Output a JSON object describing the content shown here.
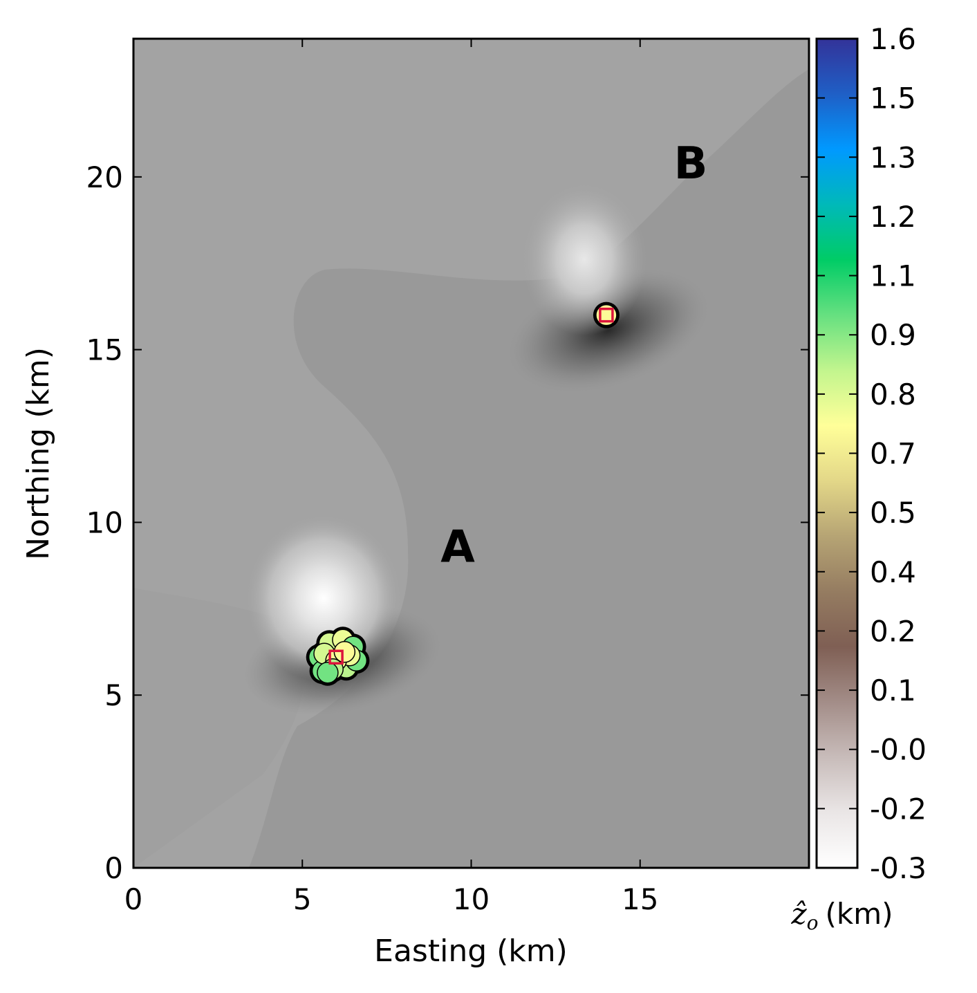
{
  "chart_data": {
    "type": "scatter",
    "xlabel": "Easting (km)",
    "ylabel": "Northing (km)",
    "xlim": [
      0,
      20
    ],
    "ylim": [
      0,
      24
    ],
    "xticks": [
      0,
      5,
      10,
      15
    ],
    "yticks": [
      0,
      5,
      10,
      15,
      20
    ],
    "background": "grayscale filled contour map of the gravity/magnetic anomaly",
    "annotations": [
      {
        "text": "A",
        "x": 9.6,
        "y": 9.3
      },
      {
        "text": "B",
        "x": 16.5,
        "y": 20.4
      }
    ],
    "sources": [
      {
        "label": "A",
        "true_location": {
          "x": 6.0,
          "y": 6.1
        },
        "estimates": [
          {
            "x": 5.5,
            "y": 6.1,
            "z": 0.95
          },
          {
            "x": 5.6,
            "y": 5.7,
            "z": 0.95
          },
          {
            "x": 5.8,
            "y": 6.5,
            "z": 0.8
          },
          {
            "x": 5.65,
            "y": 6.2,
            "z": 0.8
          },
          {
            "x": 6.2,
            "y": 6.6,
            "z": 0.75
          },
          {
            "x": 6.3,
            "y": 5.8,
            "z": 0.85
          },
          {
            "x": 6.5,
            "y": 6.4,
            "z": 0.95
          },
          {
            "x": 6.6,
            "y": 6.0,
            "z": 0.95
          },
          {
            "x": 6.4,
            "y": 6.15,
            "z": 0.75
          },
          {
            "x": 6.0,
            "y": 6.0,
            "z": 0.7
          },
          {
            "x": 6.25,
            "y": 6.25,
            "z": 0.7
          },
          {
            "x": 5.9,
            "y": 5.75,
            "z": 0.85
          },
          {
            "x": 5.75,
            "y": 5.65,
            "z": 0.95
          }
        ]
      },
      {
        "label": "B",
        "true_location": {
          "x": 14.0,
          "y": 16.0
        },
        "estimates": [
          {
            "x": 14.0,
            "y": 16.0,
            "z": 0.7
          }
        ]
      }
    ],
    "colorbar": {
      "label_symbol": "ẑ",
      "label_subscript": "o",
      "label_unit": "(km)",
      "colormap": "terrain_r",
      "ticks": [
        "1.6",
        "1.5",
        "1.3",
        "1.2",
        "1.1",
        "0.9",
        "0.8",
        "0.7",
        "0.5",
        "0.4",
        "0.2",
        "0.1",
        "-0.0",
        "-0.2",
        "-0.3"
      ],
      "stops": [
        "#333399",
        "#1f5fc6",
        "#0099ff",
        "#00b9b9",
        "#00cc66",
        "#66e080",
        "#c2f58e",
        "#ffff99",
        "#e3d788",
        "#b6a474",
        "#957c61",
        "#7f5f54",
        "#a38d88",
        "#c8bcba",
        "#eae6e6",
        "#ffffff"
      ],
      "range": [
        -0.3,
        1.6
      ]
    },
    "marker_colors": {
      "true_location": "#dc143c",
      "estimate_edge": "#000000"
    }
  }
}
